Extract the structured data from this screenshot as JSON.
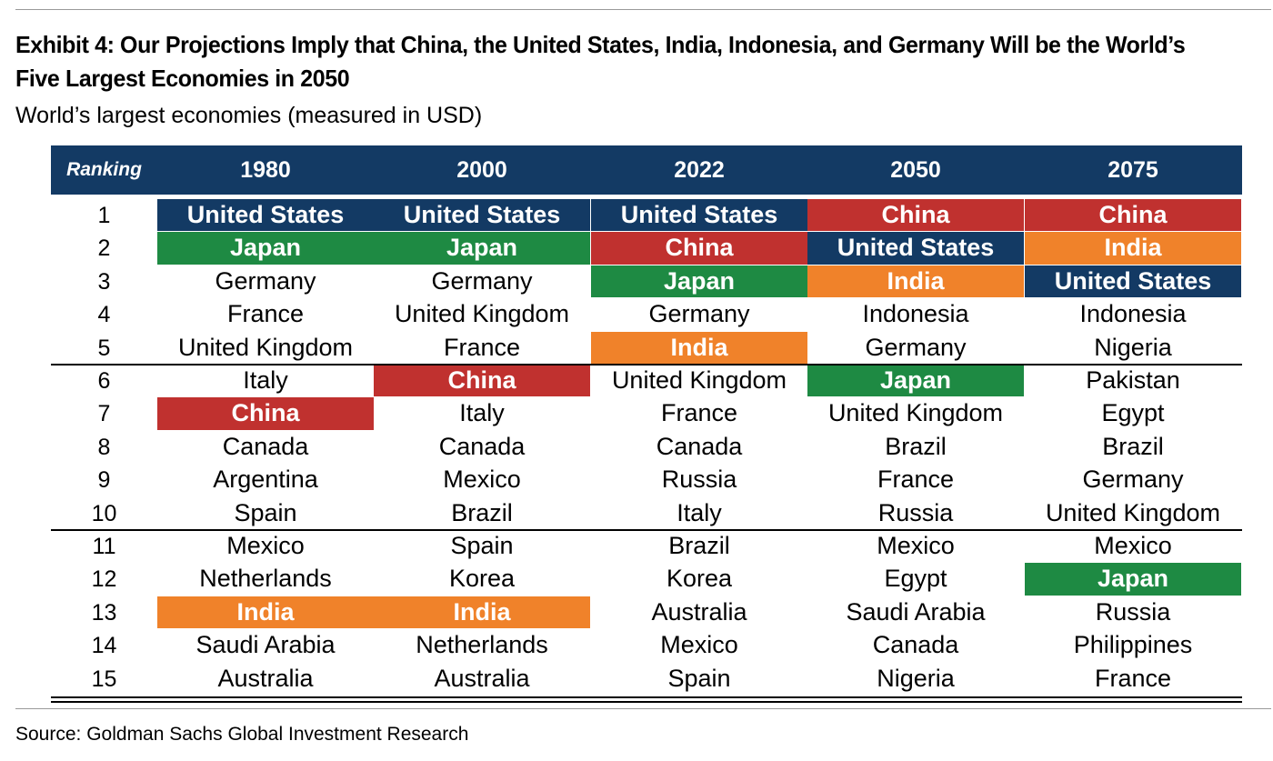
{
  "title": "Exhibit 4: Our Projections Imply that China, the United States, India, Indonesia, and Germany Will be the World’s Five Largest Economies in 2050",
  "subtitle": "World’s largest economies (measured in USD)",
  "source": "Source: Goldman Sachs Global Investment Research",
  "colors": {
    "header": "#133a64",
    "United States": "#133a64",
    "China": "#c0312f",
    "Japan": "#1e8a43",
    "India": "#f0822a"
  },
  "chart_data": {
    "type": "table",
    "columns": [
      "Ranking",
      "1980",
      "2000",
      "2022",
      "2050",
      "2075"
    ],
    "highlighted_countries": [
      "United States",
      "China",
      "Japan",
      "India"
    ],
    "rows": [
      {
        "rank": "1",
        "values": [
          "United States",
          "United States",
          "United States",
          "China",
          "China"
        ]
      },
      {
        "rank": "2",
        "values": [
          "Japan",
          "Japan",
          "China",
          "United States",
          "India"
        ]
      },
      {
        "rank": "3",
        "values": [
          "Germany",
          "Germany",
          "Japan",
          "India",
          "United States"
        ]
      },
      {
        "rank": "4",
        "values": [
          "France",
          "United Kingdom",
          "Germany",
          "Indonesia",
          "Indonesia"
        ]
      },
      {
        "rank": "5",
        "values": [
          "United Kingdom",
          "France",
          "India",
          "Germany",
          "Nigeria"
        ]
      },
      {
        "rank": "6",
        "values": [
          "Italy",
          "China",
          "United Kingdom",
          "Japan",
          "Pakistan"
        ]
      },
      {
        "rank": "7",
        "values": [
          "China",
          "Italy",
          "France",
          "United Kingdom",
          "Egypt"
        ]
      },
      {
        "rank": "8",
        "values": [
          "Canada",
          "Canada",
          "Canada",
          "Brazil",
          "Brazil"
        ]
      },
      {
        "rank": "9",
        "values": [
          "Argentina",
          "Mexico",
          "Russia",
          "France",
          "Germany"
        ]
      },
      {
        "rank": "10",
        "values": [
          "Spain",
          "Brazil",
          "Italy",
          "Russia",
          "United Kingdom"
        ]
      },
      {
        "rank": "11",
        "values": [
          "Mexico",
          "Spain",
          "Brazil",
          "Mexico",
          "Mexico"
        ]
      },
      {
        "rank": "12",
        "values": [
          "Netherlands",
          "Korea",
          "Korea",
          "Egypt",
          "Japan"
        ]
      },
      {
        "rank": "13",
        "values": [
          "India",
          "India",
          "Australia",
          "Saudi Arabia",
          "Russia"
        ]
      },
      {
        "rank": "14",
        "values": [
          "Saudi Arabia",
          "Netherlands",
          "Mexico",
          "Canada",
          "Philippines"
        ]
      },
      {
        "rank": "15",
        "values": [
          "Australia",
          "Australia",
          "Spain",
          "Nigeria",
          "France"
        ]
      }
    ]
  }
}
